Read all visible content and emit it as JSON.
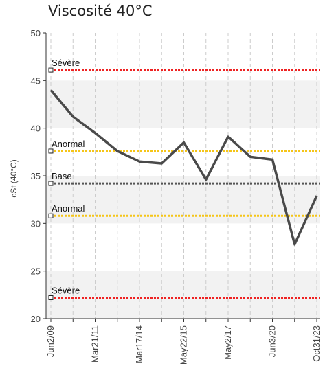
{
  "chart_data": {
    "type": "line",
    "title": "Viscosité 40°C",
    "ylabel": "cSt (40°C)",
    "xlabel": "",
    "ylim": [
      20,
      50
    ],
    "yticks": [
      20,
      25,
      30,
      35,
      40,
      45,
      50
    ],
    "grid": true,
    "x_tick_labels": [
      "Jun2/09",
      "Mar21/11",
      "Mar17/14",
      "May22/15",
      "May2/17",
      "Jun3/20",
      "Oct31/23"
    ],
    "series": [
      {
        "values": [
          44.0,
          41.2,
          39.5,
          37.6,
          36.5,
          36.3,
          38.5,
          34.6,
          39.1,
          37.0,
          36.7,
          27.8,
          32.9
        ]
      }
    ],
    "thresholds": [
      {
        "label": "Sévère",
        "value": 46.1,
        "color": "#ee2222"
      },
      {
        "label": "Anormal",
        "value": 37.6,
        "color": "#f5c518"
      },
      {
        "label": "Base",
        "value": 34.2,
        "color": "#555555"
      },
      {
        "label": "Anormal",
        "value": 30.8,
        "color": "#f5c518"
      },
      {
        "label": "Sévère",
        "value": 22.2,
        "color": "#ee2222"
      }
    ],
    "colors": {
      "line": "#4a4a4a",
      "band": "#f2f2f2",
      "grid": "#cccccc",
      "axis": "#333333"
    }
  }
}
